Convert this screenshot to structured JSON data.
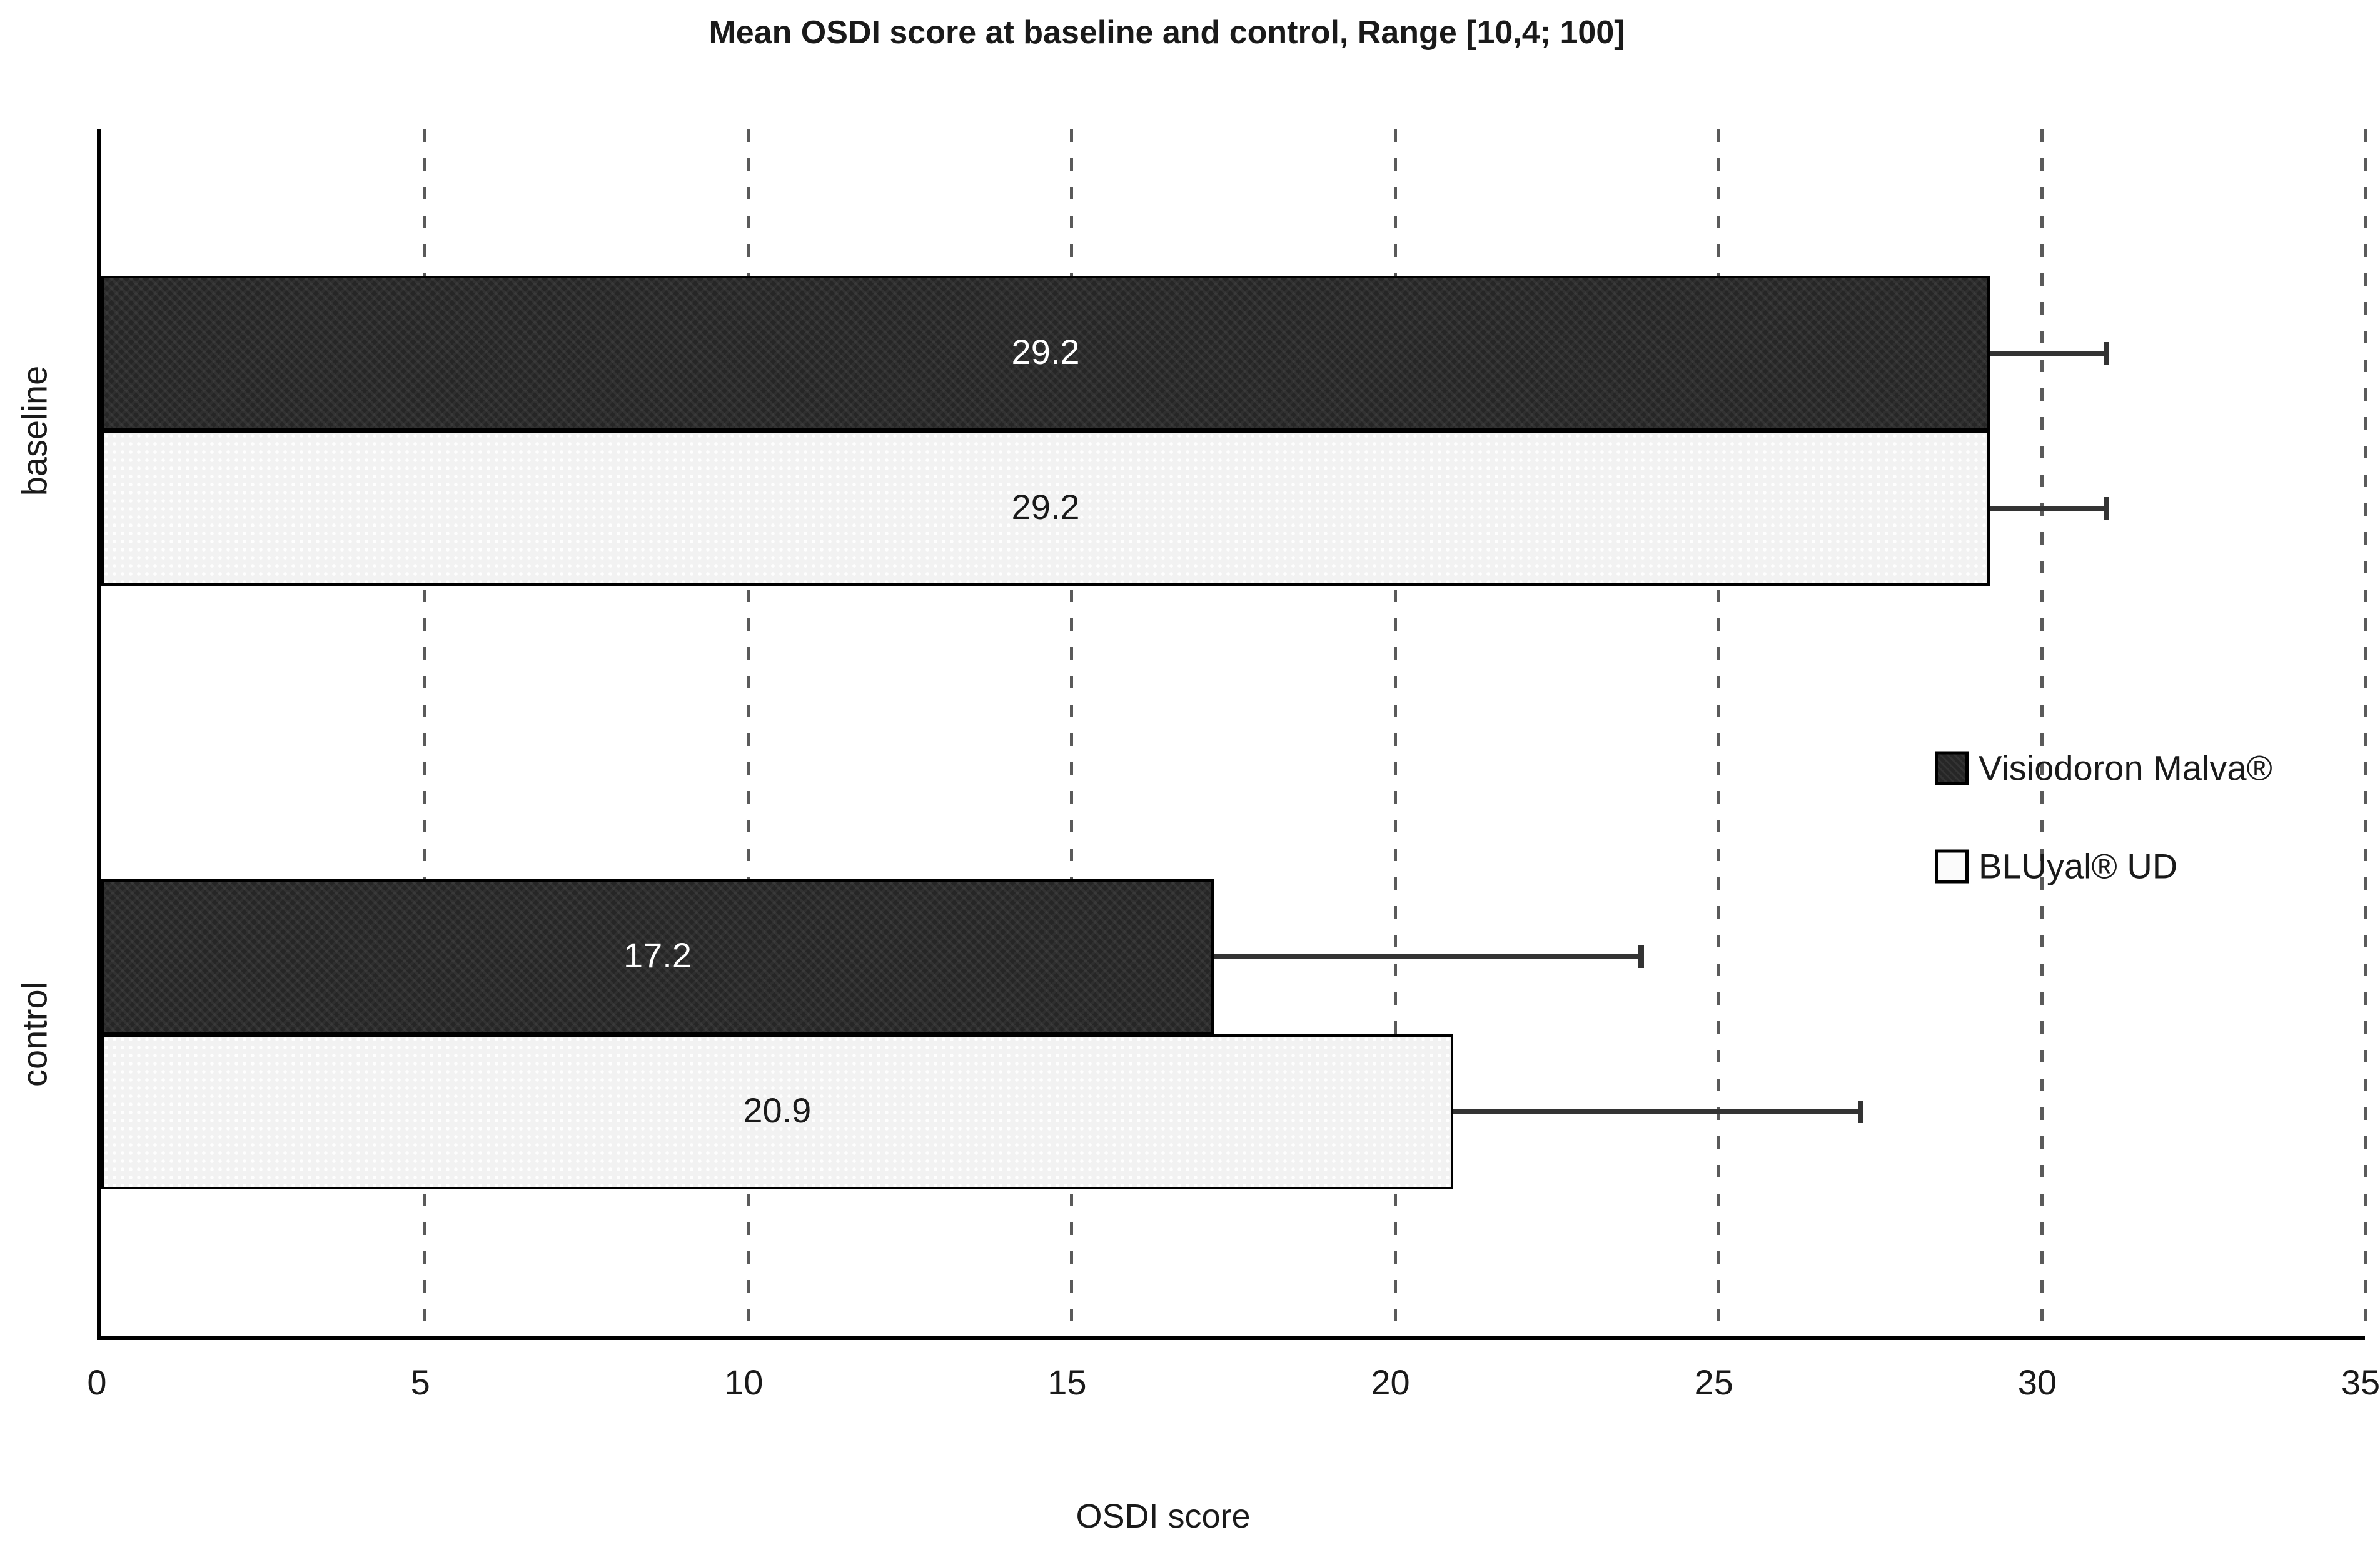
{
  "chart_data": {
    "type": "bar",
    "orientation": "horizontal",
    "title": "Mean OSDI score at baseline and control, Range [10,4; 100]",
    "xlabel": "OSDI score",
    "categories": [
      "baseline",
      "control"
    ],
    "series": [
      {
        "name": "Visiodoron Malva®",
        "values": [
          29.2,
          17.2
        ],
        "upper_error": [
          1.8,
          6.6
        ],
        "fill": "#262626",
        "border": "#000000",
        "label_color": "#ffffff"
      },
      {
        "name": "BLUyal® UD",
        "values": [
          29.2,
          20.9
        ],
        "upper_error": [
          1.8,
          6.3
        ],
        "fill": "#f2f2f2",
        "border": "#000000",
        "label_color": "#1a1a1a"
      }
    ],
    "value_label_format": "1-decimal",
    "xlim": [
      0,
      35
    ],
    "xticks": [
      0,
      5,
      10,
      15,
      20,
      25,
      30,
      35
    ],
    "grid": "vertical-dashed",
    "gridline_color": "#5a5a5a",
    "axis_color": "#000000",
    "error_bar_color": "#333333",
    "legend_position": "right-middle"
  }
}
